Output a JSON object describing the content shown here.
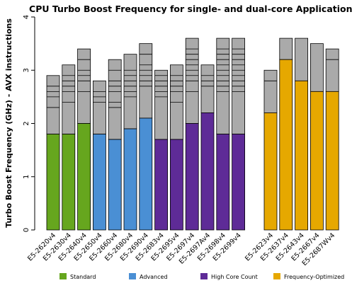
{
  "chart_data": {
    "type": "bar",
    "title": "CPU Turbo Boost Frequency for single- and dual-core Applications",
    "ylabel": "Turbo Boost Frequency (GHz) - AVX instructions",
    "xlabel": "",
    "ylim": [
      0,
      4
    ],
    "yticks": [
      "0",
      "1",
      "2",
      "3",
      "4"
    ],
    "grid": false,
    "legend_position": "bottom",
    "legend": [
      {
        "name": "Standard",
        "color": "#66a61e"
      },
      {
        "name": "Advanced",
        "color": "#4a8fd4"
      },
      {
        "name": "High Core Count",
        "color": "#5e2b97"
      },
      {
        "name": "Frequency-Optimized",
        "color": "#e6a800"
      }
    ],
    "stack_color": "#aaaaaa",
    "groups": [
      {
        "bars": [
          {
            "label": "E5-2620v4",
            "category": "Standard",
            "base": 1.8,
            "steps": [
              2.3,
              2.5,
              2.6,
              2.7,
              2.9
            ]
          },
          {
            "label": "E5-2630v4",
            "category": "Standard",
            "base": 1.8,
            "steps": [
              2.4,
              2.6,
              2.7,
              2.8,
              2.9,
              3.1
            ]
          },
          {
            "label": "E5-2640v4",
            "category": "Standard",
            "base": 2.0,
            "steps": [
              2.6,
              2.8,
              2.9,
              3.0,
              3.2,
              3.4
            ]
          },
          {
            "label": "E5-2650v4",
            "category": "Advanced",
            "base": 1.8,
            "steps": [
              2.4,
              2.5,
              2.6,
              2.8
            ]
          },
          {
            "label": "E5-2660v4",
            "category": "Advanced",
            "base": 1.7,
            "steps": [
              2.3,
              2.4,
              2.6,
              2.7,
              2.8,
              3.0,
              3.2
            ]
          },
          {
            "label": "E5-2680v4",
            "category": "Advanced",
            "base": 1.9,
            "steps": [
              2.5,
              2.6,
              2.7,
              2.8,
              2.9,
              3.0,
              3.3
            ]
          },
          {
            "label": "E5-2690v4",
            "category": "Advanced",
            "base": 2.1,
            "steps": [
              2.7,
              2.8,
              2.9,
              3.0,
              3.1,
              3.3,
              3.5
            ]
          },
          {
            "label": "E5-2683v4",
            "category": "High Core Count",
            "base": 1.7,
            "steps": [
              2.5,
              2.6,
              2.7,
              2.8,
              2.9,
              3.0
            ]
          },
          {
            "label": "E5-2695v4",
            "category": "High Core Count",
            "base": 1.7,
            "steps": [
              2.4,
              2.6,
              2.7,
              2.8,
              2.9,
              3.1
            ]
          },
          {
            "label": "E5-2697v4",
            "category": "High Core Count",
            "base": 2.0,
            "steps": [
              2.6,
              2.8,
              2.9,
              3.0,
              3.1,
              3.2,
              3.3,
              3.4,
              3.6
            ]
          },
          {
            "label": "E5-2697Av4",
            "category": "High Core Count",
            "base": 2.2,
            "steps": [
              2.7,
              2.8,
              2.9,
              3.1
            ]
          },
          {
            "label": "E5-2698v4",
            "category": "High Core Count",
            "base": 1.8,
            "steps": [
              2.6,
              2.7,
              2.8,
              2.9,
              3.0,
              3.1,
              3.2,
              3.3,
              3.4,
              3.6
            ]
          },
          {
            "label": "E5-2699v4",
            "category": "High Core Count",
            "base": 1.8,
            "steps": [
              2.6,
              2.7,
              2.8,
              2.9,
              3.0,
              3.1,
              3.2,
              3.3,
              3.4,
              3.6
            ]
          }
        ]
      },
      {
        "bars": [
          {
            "label": "E5-2623v4",
            "category": "Frequency-Optimized",
            "base": 2.2,
            "steps": [
              2.8,
              3.0
            ]
          },
          {
            "label": "E5-2637v4",
            "category": "Frequency-Optimized",
            "base": 3.2,
            "steps": [
              3.6
            ]
          },
          {
            "label": "E5-2643v4",
            "category": "Frequency-Optimized",
            "base": 2.8,
            "steps": [
              3.6
            ]
          },
          {
            "label": "E5-2667v4",
            "category": "Frequency-Optimized",
            "base": 2.6,
            "steps": [
              3.5
            ]
          },
          {
            "label": "E5-2687Wv4",
            "category": "Frequency-Optimized",
            "base": 2.6,
            "steps": [
              3.2,
              3.4
            ]
          }
        ]
      }
    ]
  }
}
